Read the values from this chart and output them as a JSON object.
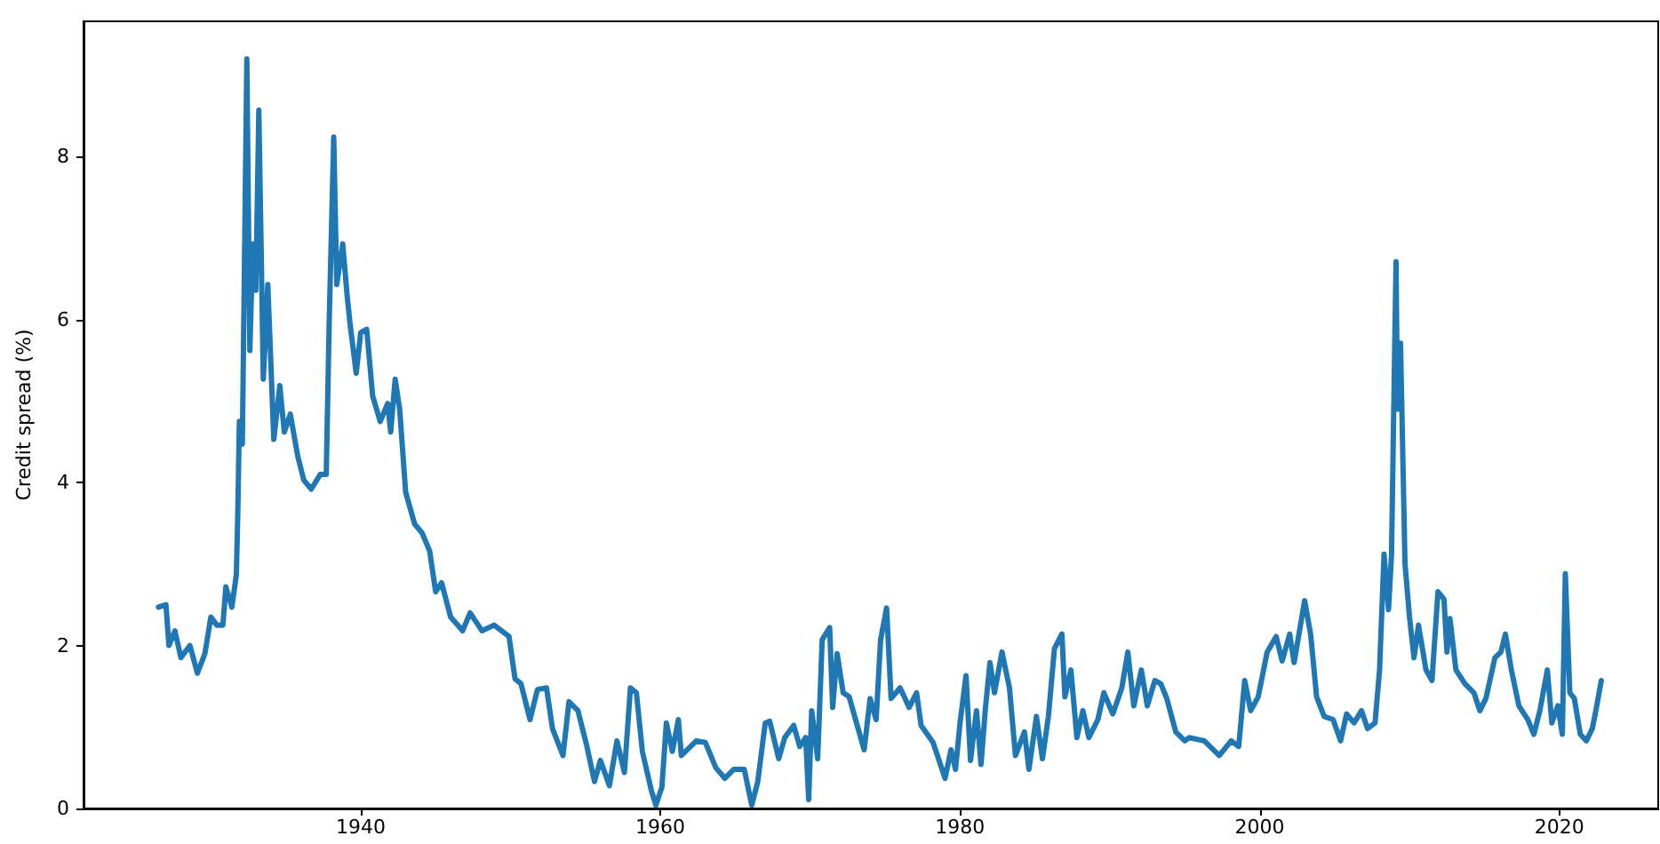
{
  "chart_data": {
    "type": "line",
    "ylabel": "Credit spread (%)",
    "xlim": [
      1921.5,
      2026.6
    ],
    "xticks": [
      1940,
      1960,
      1980,
      2000,
      2020
    ],
    "ylim": [
      0,
      9.66
    ],
    "yticks": [
      0,
      2,
      4,
      6,
      8
    ],
    "grid": false,
    "marker": "none",
    "line_style": "solid",
    "series": [
      {
        "color": "#1f77b4",
        "x": [
          1926.5,
          1927.0,
          1927.2,
          1927.6,
          1928.0,
          1928.6,
          1929.1,
          1929.6,
          1930.0,
          1930.4,
          1930.8,
          1931.0,
          1931.4,
          1931.7,
          1931.8,
          1931.9,
          1932.1,
          1932.4,
          1932.6,
          1932.8,
          1933.0,
          1933.2,
          1933.5,
          1933.8,
          1934.2,
          1934.6,
          1934.9,
          1935.3,
          1935.8,
          1936.2,
          1936.7,
          1937.3,
          1937.7,
          1937.9,
          1938.2,
          1938.4,
          1938.8,
          1939.1,
          1939.3,
          1939.7,
          1940.0,
          1940.4,
          1940.8,
          1941.3,
          1941.8,
          1942.0,
          1942.3,
          1942.6,
          1943.0,
          1943.6,
          1944.1,
          1944.6,
          1945.0,
          1945.4,
          1946.0,
          1946.8,
          1947.3,
          1948.1,
          1948.9,
          1949.9,
          1950.3,
          1950.7,
          1951.3,
          1951.8,
          1952.4,
          1952.8,
          1953.5,
          1953.9,
          1954.5,
          1955.1,
          1955.6,
          1956.0,
          1956.6,
          1957.1,
          1957.6,
          1958.0,
          1958.4,
          1958.8,
          1959.4,
          1959.7,
          1960.1,
          1960.4,
          1960.8,
          1961.2,
          1961.4,
          1962.4,
          1963.0,
          1963.7,
          1964.3,
          1964.9,
          1965.6,
          1966.1,
          1966.5,
          1967.0,
          1967.3,
          1967.9,
          1968.3,
          1968.9,
          1969.3,
          1969.7,
          1969.9,
          1970.1,
          1970.5,
          1970.8,
          1971.3,
          1971.5,
          1971.8,
          1972.2,
          1972.6,
          1973.2,
          1973.6,
          1974.0,
          1974.4,
          1974.7,
          1975.1,
          1975.4,
          1976.0,
          1976.6,
          1977.1,
          1977.4,
          1978.2,
          1979.0,
          1979.4,
          1979.7,
          1980.0,
          1980.4,
          1980.7,
          1981.1,
          1981.4,
          1981.7,
          1982.0,
          1982.3,
          1982.8,
          1983.3,
          1983.7,
          1984.3,
          1984.6,
          1985.1,
          1985.5,
          1985.9,
          1986.3,
          1986.8,
          1987.0,
          1987.4,
          1987.8,
          1988.2,
          1988.6,
          1989.2,
          1989.6,
          1990.2,
          1990.8,
          1991.2,
          1991.6,
          1992.1,
          1992.5,
          1993.0,
          1993.4,
          1993.8,
          1994.4,
          1995.0,
          1995.3,
          1996.3,
          1997.3,
          1998.1,
          1998.6,
          1999.0,
          1999.4,
          1999.9,
          2000.5,
          2001.1,
          2001.5,
          2002.0,
          2002.3,
          2003.0,
          2003.4,
          2003.8,
          2004.3,
          2004.9,
          2005.4,
          2005.8,
          2006.3,
          2006.8,
          2007.2,
          2007.7,
          2008.0,
          2008.3,
          2008.6,
          2008.8,
          2009.1,
          2009.2,
          2009.4,
          2009.7,
          2010.0,
          2010.3,
          2010.6,
          2011.1,
          2011.5,
          2011.9,
          2012.3,
          2012.5,
          2012.7,
          2013.1,
          2013.7,
          2014.3,
          2014.7,
          2015.1,
          2015.7,
          2016.1,
          2016.4,
          2016.8,
          2017.3,
          2017.9,
          2018.3,
          2018.7,
          2019.2,
          2019.5,
          2019.9,
          2020.2,
          2020.4,
          2020.7,
          2021.0,
          2021.4,
          2021.8,
          2022.2,
          2022.5,
          2022.8
        ],
        "values": [
          2.47,
          2.5,
          2.0,
          2.18,
          1.85,
          2.0,
          1.66,
          1.9,
          2.35,
          2.25,
          2.25,
          2.72,
          2.47,
          2.87,
          3.66,
          4.75,
          4.47,
          9.2,
          5.62,
          6.93,
          6.36,
          8.57,
          5.27,
          6.43,
          4.53,
          5.19,
          4.62,
          4.84,
          4.32,
          4.03,
          3.92,
          4.1,
          4.1,
          6.0,
          8.24,
          6.43,
          6.93,
          6.28,
          5.93,
          5.34,
          5.84,
          5.88,
          5.06,
          4.75,
          4.97,
          4.62,
          5.27,
          4.9,
          3.88,
          3.49,
          3.38,
          3.16,
          2.66,
          2.77,
          2.35,
          2.18,
          2.4,
          2.18,
          2.25,
          2.11,
          1.59,
          1.53,
          1.09,
          1.46,
          1.48,
          0.98,
          0.65,
          1.31,
          1.2,
          0.76,
          0.33,
          0.59,
          0.28,
          0.83,
          0.44,
          1.48,
          1.42,
          0.7,
          0.22,
          0.04,
          0.26,
          1.05,
          0.7,
          1.09,
          0.65,
          0.83,
          0.81,
          0.5,
          0.37,
          0.48,
          0.48,
          0.04,
          0.33,
          1.05,
          1.07,
          0.61,
          0.87,
          1.02,
          0.76,
          0.87,
          0.11,
          1.2,
          0.61,
          2.07,
          2.22,
          1.24,
          1.9,
          1.42,
          1.37,
          0.98,
          0.72,
          1.35,
          1.09,
          2.07,
          2.46,
          1.35,
          1.48,
          1.24,
          1.42,
          1.02,
          0.81,
          0.37,
          0.72,
          0.48,
          1.05,
          1.63,
          0.59,
          1.2,
          0.54,
          1.24,
          1.79,
          1.42,
          1.92,
          1.48,
          0.65,
          0.94,
          0.48,
          1.13,
          0.61,
          1.13,
          1.96,
          2.14,
          1.37,
          1.7,
          0.87,
          1.2,
          0.87,
          1.09,
          1.42,
          1.16,
          1.48,
          1.92,
          1.26,
          1.7,
          1.26,
          1.57,
          1.53,
          1.35,
          0.94,
          0.83,
          0.87,
          0.83,
          0.65,
          0.83,
          0.76,
          1.57,
          1.2,
          1.37,
          1.92,
          2.11,
          1.81,
          2.14,
          1.79,
          2.55,
          2.14,
          1.37,
          1.13,
          1.09,
          0.83,
          1.16,
          1.05,
          1.2,
          0.98,
          1.05,
          1.7,
          3.12,
          2.44,
          3.12,
          6.71,
          4.9,
          5.71,
          3.0,
          2.35,
          1.85,
          2.25,
          1.7,
          1.57,
          2.66,
          2.57,
          1.92,
          2.33,
          1.7,
          1.53,
          1.42,
          1.2,
          1.35,
          1.85,
          1.92,
          2.14,
          1.7,
          1.26,
          1.09,
          0.91,
          1.2,
          1.7,
          1.05,
          1.26,
          0.91,
          2.88,
          1.42,
          1.35,
          0.91,
          0.83,
          0.98,
          1.26,
          1.57
        ]
      }
    ]
  }
}
